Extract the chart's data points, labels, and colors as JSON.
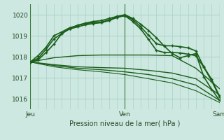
{
  "xlabel": "Pression niveau de la mer( hPa )",
  "xtick_labels": [
    "Jeu",
    "Ven",
    "Sam"
  ],
  "xtick_positions": [
    0,
    12,
    24
  ],
  "ylim": [
    1015.5,
    1020.5
  ],
  "yticks": [
    1016,
    1017,
    1018,
    1019,
    1020
  ],
  "xlim": [
    0,
    24
  ],
  "bg_color": "#cce8e0",
  "grid_color": "#aad0c8",
  "line_color": "#1a5e1a",
  "lines": [
    {
      "x": [
        0,
        1,
        2,
        3,
        4,
        5,
        6,
        7,
        8,
        9,
        10,
        11,
        12,
        13,
        14,
        15,
        16,
        17,
        18,
        19,
        20,
        21,
        22,
        23,
        24
      ],
      "y": [
        1017.75,
        1017.85,
        1018.2,
        1018.6,
        1019.1,
        1019.35,
        1019.5,
        1019.6,
        1019.68,
        1019.72,
        1019.82,
        1019.92,
        1020.0,
        1019.82,
        1019.55,
        1019.25,
        1018.9,
        1018.5,
        1018.15,
        1017.95,
        1018.05,
        1018.15,
        1017.05,
        1016.45,
        1015.92
      ],
      "lw": 1.2,
      "marker": "+",
      "ms": 3,
      "mew": 1.0
    },
    {
      "x": [
        0,
        1,
        2,
        3,
        4,
        5,
        6,
        7,
        8,
        9,
        10,
        11,
        12,
        13,
        14,
        15,
        16,
        17,
        18,
        19,
        20,
        21,
        22,
        23,
        24
      ],
      "y": [
        1017.75,
        1017.92,
        1018.35,
        1018.85,
        1019.1,
        1019.32,
        1019.42,
        1019.52,
        1019.58,
        1019.62,
        1019.72,
        1019.87,
        1019.97,
        1019.77,
        1019.42,
        1019.02,
        1018.62,
        1018.52,
        1018.52,
        1018.48,
        1018.42,
        1018.28,
        1017.52,
        1016.92,
        1016.12
      ],
      "lw": 1.2,
      "marker": "+",
      "ms": 3,
      "mew": 1.0
    },
    {
      "x": [
        0,
        1,
        2,
        3,
        4,
        5,
        6,
        7,
        8,
        9,
        10,
        11,
        12,
        13,
        14,
        15,
        16,
        17,
        18,
        19,
        20,
        21,
        22,
        23,
        24
      ],
      "y": [
        1017.75,
        1018.05,
        1018.45,
        1019.0,
        1019.18,
        1019.38,
        1019.48,
        1019.58,
        1019.62,
        1019.65,
        1019.75,
        1019.88,
        1019.95,
        1019.68,
        1019.32,
        1018.82,
        1018.3,
        1018.2,
        1018.2,
        1018.18,
        1018.12,
        1018.05,
        1017.5,
        1016.85,
        1016.08
      ],
      "lw": 1.2,
      "marker": "+",
      "ms": 3,
      "mew": 1.0
    },
    {
      "x": [
        0,
        3,
        6,
        9,
        12,
        15,
        18,
        21,
        24
      ],
      "y": [
        1017.75,
        1017.95,
        1018.05,
        1018.08,
        1018.08,
        1018.08,
        1018.05,
        1017.45,
        1016.48
      ],
      "lw": 1.0,
      "marker": null,
      "ms": 0,
      "mew": 0
    },
    {
      "x": [
        0,
        3,
        6,
        9,
        12,
        15,
        18,
        21,
        24
      ],
      "y": [
        1017.75,
        1017.62,
        1017.52,
        1017.48,
        1017.45,
        1017.35,
        1017.22,
        1016.95,
        1016.18
      ],
      "lw": 1.0,
      "marker": null,
      "ms": 0,
      "mew": 0
    },
    {
      "x": [
        0,
        3,
        6,
        9,
        12,
        15,
        18,
        21,
        24
      ],
      "y": [
        1017.75,
        1017.58,
        1017.45,
        1017.38,
        1017.28,
        1017.15,
        1016.95,
        1016.65,
        1015.92
      ],
      "lw": 1.0,
      "marker": null,
      "ms": 0,
      "mew": 0
    },
    {
      "x": [
        0,
        3,
        6,
        9,
        12,
        15,
        18,
        21,
        24
      ],
      "y": [
        1017.75,
        1017.52,
        1017.38,
        1017.28,
        1017.15,
        1016.95,
        1016.75,
        1016.38,
        1015.82
      ],
      "lw": 0.8,
      "marker": null,
      "ms": 0,
      "mew": 0
    }
  ],
  "vline_positions": [
    0,
    12,
    24
  ],
  "figsize": [
    3.2,
    2.0
  ],
  "dpi": 100
}
